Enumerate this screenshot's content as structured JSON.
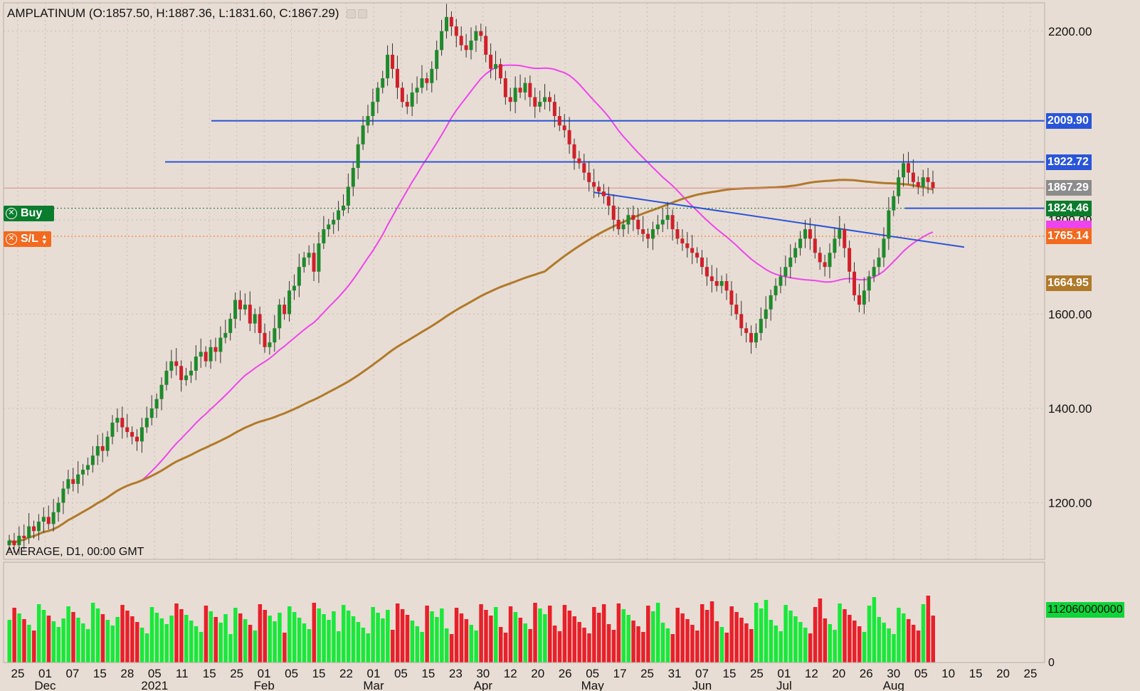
{
  "header": {
    "title": "AMPLATINUM (O:1857.50, H:1887.36, L:1831.60, C:1867.29)"
  },
  "indicator_label": "AVERAGE, D1, 00:00 GMT",
  "orders": {
    "buy": {
      "label": "Buy",
      "price": 1824.46,
      "color": "#0a7c2d",
      "icon": "close-circle-icon"
    },
    "stop_loss": {
      "label": "S/L",
      "price": 1765.14,
      "color": "#f36a1f",
      "icon": "close-circle-icon"
    }
  },
  "price_tags": [
    {
      "name": "resistance-2009-tag",
      "text": "2009.90",
      "price": 2009.9,
      "bg": "#2a55d8"
    },
    {
      "name": "resistance-1922-tag",
      "text": "1922.72",
      "price": 1922.72,
      "bg": "#2a55d8"
    },
    {
      "name": "last-price-tag",
      "text": "1867.29",
      "price": 1867.29,
      "bg": "#8c8c8c"
    },
    {
      "name": "buy-price-tag",
      "text": "1824.46",
      "price": 1824.46,
      "bg": "#0a7c2d"
    },
    {
      "name": "ma50-tag",
      "text": "",
      "price": 1781,
      "bg": "#ee44ee"
    },
    {
      "name": "stop-loss-price-tag",
      "text": "1765.14",
      "price": 1765.14,
      "bg": "#f36a1f"
    },
    {
      "name": "ma200-tag",
      "text": "1664.95",
      "price": 1664.95,
      "bg": "#b07a2a"
    }
  ],
  "volume_tag": {
    "text": "112060000000",
    "bg": "#0fd43a"
  },
  "colors": {
    "background": "#e8ddd4",
    "up": "#1e8a2c",
    "down": "#d0202a",
    "volume_up": "#19e83a",
    "volume_down": "#e8202a",
    "ma50": "#ee44ee",
    "ma200": "#b07a2a",
    "trendline": "#2a55d8"
  },
  "chart_data": {
    "type": "candlestick",
    "symbol": "AMPLATINUM",
    "timeframe": "D1",
    "ylim": [
      1080,
      2260
    ],
    "yticks": [
      1200,
      1400,
      1600,
      1800,
      2200
    ],
    "ytick_labels": [
      "1200.00",
      "1400.00",
      "1600.00",
      "1800.00",
      "2200.00"
    ],
    "xticks": [
      "25",
      "01",
      "07",
      "15",
      "28",
      "05",
      "11",
      "15",
      "25",
      "01",
      "05",
      "15",
      "22",
      "01",
      "05",
      "15",
      "23",
      "30",
      "12",
      "20",
      "26",
      "05",
      "17",
      "25",
      "31",
      "07",
      "15",
      "25",
      "01",
      "12",
      "20",
      "26",
      "30",
      "05",
      "10",
      "15",
      "20",
      "25"
    ],
    "month_labels": [
      "Dec",
      "2021",
      "Feb",
      "Mar",
      "Apr",
      "May",
      "Jun",
      "Jul",
      "Aug"
    ],
    "ohlc_close_path": [
      1120,
      1110,
      1130,
      1125,
      1150,
      1140,
      1160,
      1170,
      1155,
      1180,
      1200,
      1230,
      1250,
      1240,
      1260,
      1270,
      1280,
      1300,
      1320,
      1310,
      1340,
      1370,
      1380,
      1360,
      1350,
      1340,
      1330,
      1360,
      1380,
      1400,
      1420,
      1450,
      1480,
      1500,
      1490,
      1460,
      1470,
      1480,
      1510,
      1520,
      1500,
      1530,
      1520,
      1550,
      1560,
      1590,
      1630,
      1610,
      1620,
      1580,
      1600,
      1560,
      1530,
      1540,
      1570,
      1620,
      1600,
      1650,
      1660,
      1700,
      1720,
      1730,
      1690,
      1750,
      1780,
      1790,
      1800,
      1820,
      1830,
      1870,
      1910,
      1960,
      2000,
      2020,
      2050,
      2080,
      2100,
      2150,
      2120,
      2080,
      2050,
      2040,
      2070,
      2080,
      2100,
      2090,
      2120,
      2160,
      2200,
      2230,
      2210,
      2190,
      2170,
      2160,
      2180,
      2200,
      2190,
      2150,
      2120,
      2130,
      2100,
      2060,
      2050,
      2080,
      2070,
      2090,
      2060,
      2040,
      2050,
      2060,
      2050,
      2020,
      2000,
      1990,
      1960,
      1930,
      1920,
      1900,
      1880,
      1870,
      1860,
      1850,
      1830,
      1800,
      1780,
      1790,
      1810,
      1800,
      1780,
      1770,
      1760,
      1780,
      1790,
      1800,
      1810,
      1780,
      1760,
      1750,
      1740,
      1730,
      1720,
      1700,
      1680,
      1670,
      1660,
      1670,
      1650,
      1620,
      1600,
      1570,
      1560,
      1540,
      1560,
      1590,
      1610,
      1640,
      1660,
      1680,
      1700,
      1720,
      1740,
      1760,
      1780,
      1760,
      1730,
      1710,
      1700,
      1730,
      1760,
      1780,
      1740,
      1690,
      1640,
      1620,
      1650,
      1680,
      1700,
      1720,
      1760,
      1820,
      1850,
      1890,
      1920,
      1900,
      1880,
      1870,
      1890,
      1880,
      1867.29
    ],
    "horizontal_lines": [
      {
        "name": "resistance-2009",
        "price": 2009.9
      },
      {
        "name": "resistance-1922",
        "price": 1922.72
      }
    ],
    "buy_level": 1824.46,
    "stop_loss_level": 1765.14,
    "last_price": 1867.29,
    "ma50_last": 1781,
    "ma200_last": 1664.95,
    "trendline": {
      "from_price": 1858,
      "to_price": 1742
    },
    "volume_tag": "112060000000",
    "volume_ylim": [
      0,
      112060000000
    ]
  }
}
